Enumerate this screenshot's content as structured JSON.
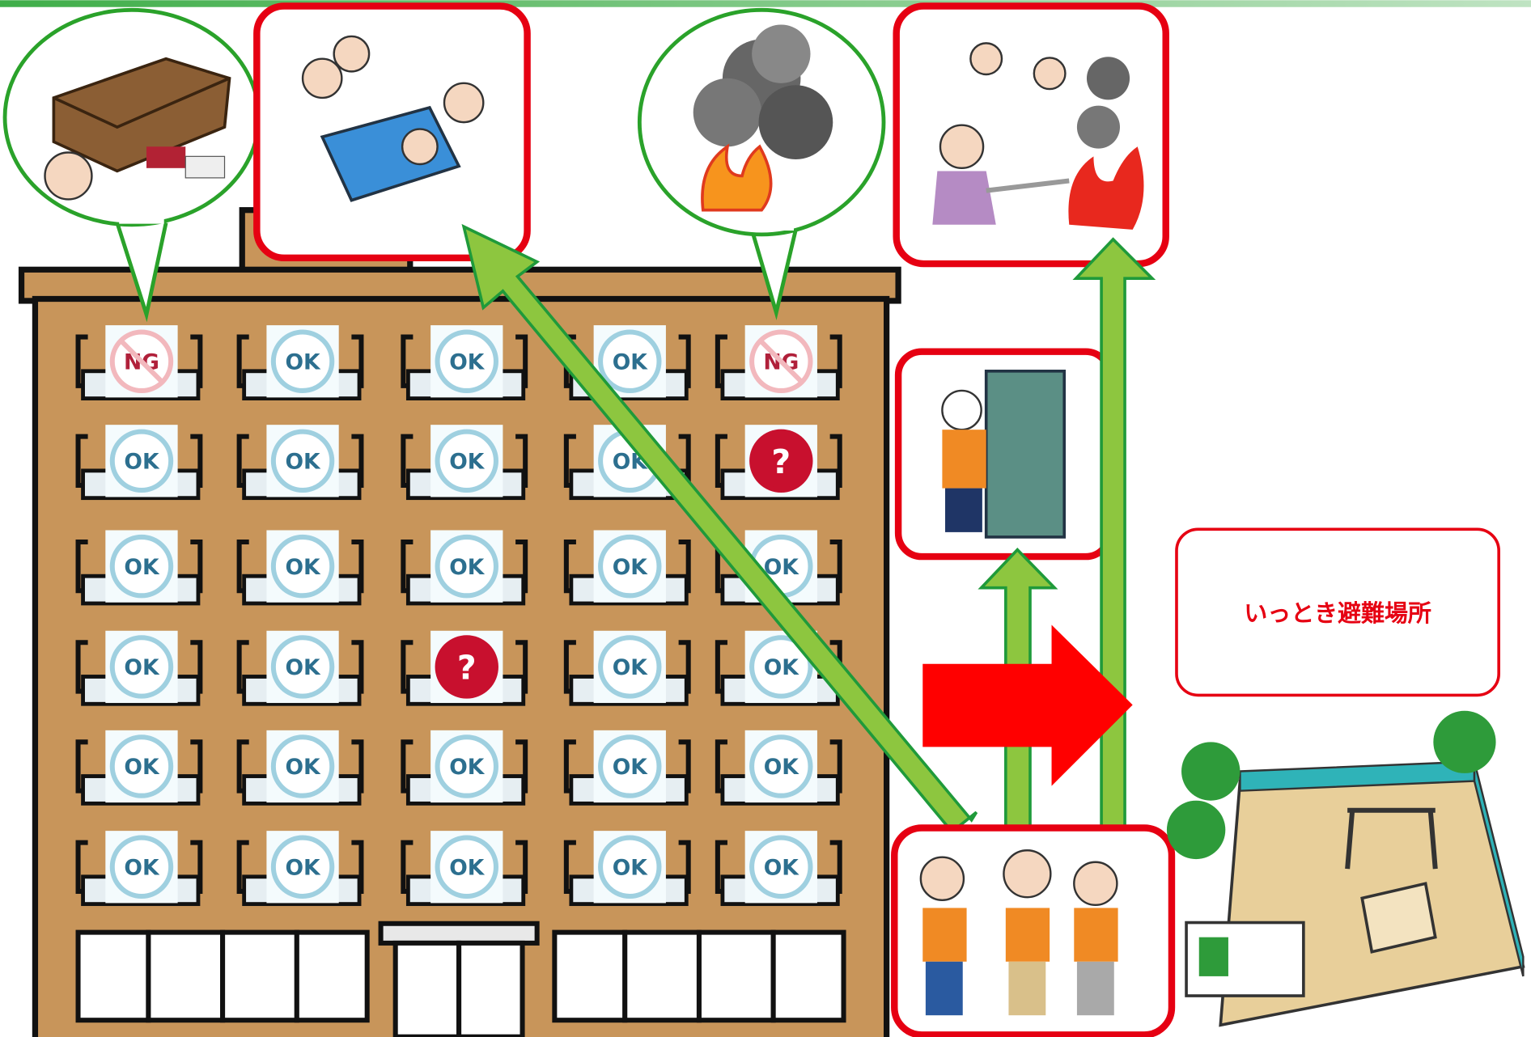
{
  "building": {
    "windows": [
      [
        "NG",
        "OK",
        "OK",
        "OK",
        "NG"
      ],
      [
        "OK",
        "OK",
        "OK",
        "OK",
        "?"
      ],
      [
        "OK",
        "OK",
        "OK",
        "OK",
        "OK"
      ],
      [
        "OK",
        "OK",
        "?",
        "OK",
        "OK"
      ],
      [
        "OK",
        "OK",
        "OK",
        "OK",
        "OK"
      ],
      [
        "OK",
        "OK",
        "OK",
        "OK",
        "OK"
      ]
    ]
  },
  "evacuation_site": {
    "label": "いっとき避難場所"
  }
}
